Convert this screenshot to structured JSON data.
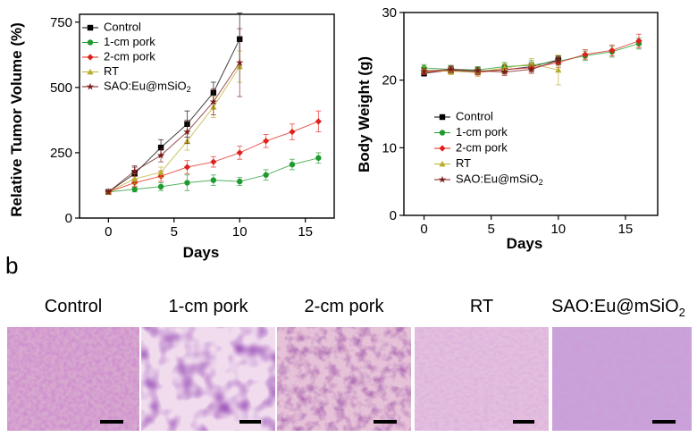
{
  "figure": {
    "panel_b_label": "b",
    "histology_labels": [
      "Control",
      "1-cm pork",
      "2-cm pork",
      "RT",
      "SAO:Eu@mSiO"
    ],
    "histology_label_subscript": "2"
  },
  "chart_data": [
    {
      "type": "line",
      "title": "",
      "xlabel": "Days",
      "ylabel": "Relative Tumor Volume (%)",
      "xlim": [
        -2.2,
        17.2
      ],
      "ylim": [
        0,
        780
      ],
      "xticks": [
        0,
        5,
        10,
        15
      ],
      "yticks": [
        0,
        250,
        500,
        750
      ],
      "legend_position": "top-left",
      "series": [
        {
          "name": "Control",
          "color": "#000000",
          "marker": "square",
          "x": [
            0,
            2,
            4,
            6,
            8,
            10
          ],
          "y": [
            100,
            170,
            270,
            360,
            480,
            685
          ],
          "err": [
            5,
            25,
            30,
            50,
            40,
            100
          ]
        },
        {
          "name": "1-cm pork",
          "color": "#1e9a2e",
          "marker": "circle",
          "x": [
            0,
            2,
            4,
            6,
            8,
            10,
            12,
            14,
            16
          ],
          "y": [
            100,
            110,
            120,
            135,
            145,
            140,
            165,
            205,
            230
          ],
          "err": [
            5,
            10,
            15,
            30,
            20,
            15,
            20,
            20,
            20
          ]
        },
        {
          "name": "2-cm pork",
          "color": "#e0201a",
          "marker": "diamond",
          "x": [
            0,
            2,
            4,
            6,
            8,
            10,
            12,
            14,
            16
          ],
          "y": [
            100,
            135,
            160,
            195,
            215,
            250,
            295,
            330,
            370
          ],
          "err": [
            5,
            15,
            20,
            25,
            20,
            25,
            25,
            30,
            40
          ]
        },
        {
          "name": "RT",
          "color": "#b8ae2c",
          "marker": "triangle",
          "x": [
            0,
            2,
            4,
            6,
            8,
            10
          ],
          "y": [
            100,
            150,
            175,
            295,
            425,
            580
          ],
          "err": [
            5,
            20,
            20,
            35,
            40,
            60
          ]
        },
        {
          "name": "SAO:Eu@mSiO",
          "name_subscript": "2",
          "color": "#7a1a1a",
          "marker": "star",
          "x": [
            0,
            2,
            4,
            6,
            8,
            10
          ],
          "y": [
            100,
            180,
            240,
            330,
            445,
            595
          ],
          "err": [
            5,
            20,
            25,
            45,
            50,
            130
          ]
        }
      ]
    },
    {
      "type": "line",
      "title": "",
      "xlabel": "Days",
      "ylabel": "Body Weight (g)",
      "xlim": [
        -1.5,
        17.4
      ],
      "ylim": [
        0,
        30
      ],
      "xticks": [
        0,
        5,
        10,
        15
      ],
      "yticks": [
        0,
        10,
        20,
        30
      ],
      "legend_position": "center-left",
      "series": [
        {
          "name": "Control",
          "color": "#000000",
          "marker": "square",
          "x": [
            0,
            2,
            4,
            6,
            8,
            10
          ],
          "y": [
            21.0,
            21.5,
            21.3,
            21.5,
            22.0,
            23.0
          ],
          "err": [
            0.4,
            0.5,
            0.5,
            0.5,
            0.6,
            0.6
          ]
        },
        {
          "name": "1-cm pork",
          "color": "#1e9a2e",
          "marker": "circle",
          "x": [
            0,
            2,
            4,
            6,
            8,
            10,
            12,
            14,
            16
          ],
          "y": [
            21.8,
            21.6,
            21.5,
            22.0,
            22.2,
            22.8,
            23.6,
            24.2,
            25.4
          ],
          "err": [
            0.5,
            0.6,
            0.5,
            0.6,
            0.7,
            0.6,
            0.7,
            0.8,
            0.8
          ]
        },
        {
          "name": "2-cm pork",
          "color": "#e0201a",
          "marker": "diamond",
          "x": [
            0,
            2,
            4,
            6,
            8,
            10,
            12,
            14,
            16
          ],
          "y": [
            21.2,
            21.4,
            21.1,
            21.6,
            21.8,
            22.6,
            23.8,
            24.4,
            25.8
          ],
          "err": [
            0.4,
            0.5,
            0.5,
            0.6,
            0.6,
            0.7,
            0.7,
            0.8,
            1.0
          ]
        },
        {
          "name": "RT",
          "color": "#b8ae2c",
          "marker": "triangle",
          "x": [
            0,
            2,
            4,
            6,
            8,
            10
          ],
          "y": [
            21.5,
            21.3,
            21.2,
            21.8,
            22.4,
            21.5
          ],
          "err": [
            0.5,
            0.5,
            0.6,
            0.7,
            0.8,
            2.2
          ]
        },
        {
          "name": "SAO:Eu@mSiO",
          "name_subscript": "2",
          "color": "#7a1a1a",
          "marker": "star",
          "x": [
            0,
            2,
            4,
            6,
            8,
            10
          ],
          "y": [
            21.3,
            21.6,
            21.4,
            21.2,
            21.6,
            22.9
          ],
          "err": [
            0.4,
            0.5,
            0.5,
            0.5,
            0.6,
            0.6
          ]
        }
      ]
    }
  ]
}
